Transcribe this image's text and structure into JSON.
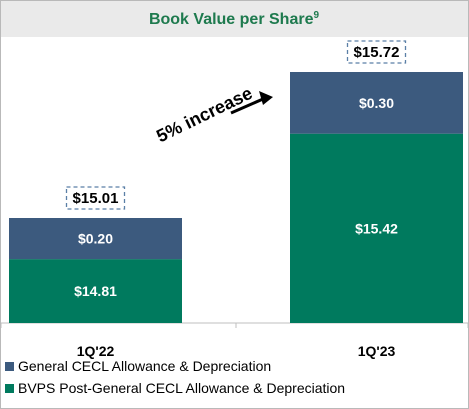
{
  "chart_data": {
    "type": "bar",
    "stacked": true,
    "title": "Book Value per Share",
    "title_footnote": "9",
    "categories": [
      "1Q'22",
      "1Q'23"
    ],
    "series": [
      {
        "name": "BVPS Post-General CECL Allowance & Depreciation",
        "values": [
          14.81,
          15.42
        ],
        "labels": [
          "$14.81",
          "$15.42"
        ],
        "color": "#007A5E"
      },
      {
        "name": "General CECL Allowance & Depreciation",
        "values": [
          0.2,
          0.3
        ],
        "labels": [
          "$0.20",
          "$0.30"
        ],
        "color": "#3C5A7E"
      }
    ],
    "totals": [
      15.01,
      15.72
    ],
    "total_labels": [
      "$15.01",
      "$15.72"
    ],
    "annotation": "5% increase",
    "legend_position": "bottom",
    "grid": false,
    "title_background": "#EAEAEA",
    "title_color": "#1E7A4E"
  }
}
